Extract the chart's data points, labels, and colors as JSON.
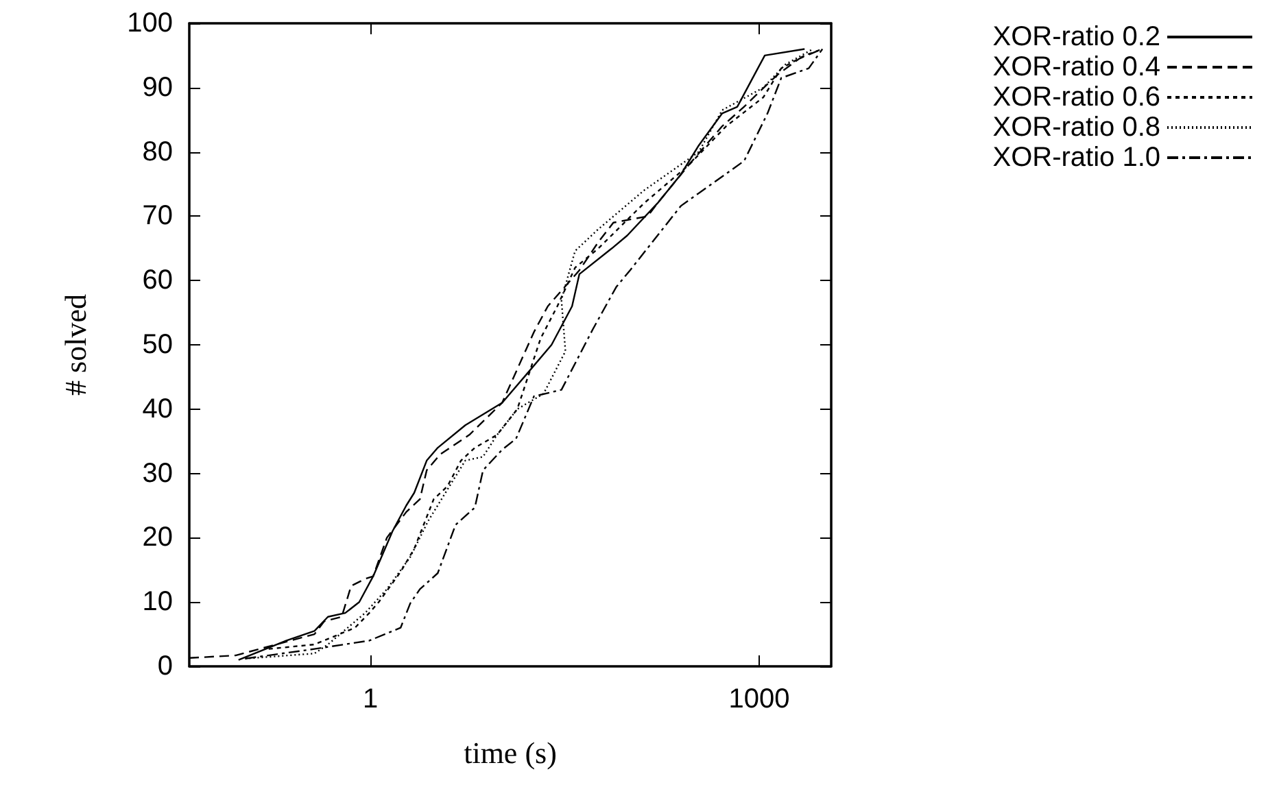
{
  "chart_data": {
    "type": "line",
    "xlabel": "time (s)",
    "ylabel": "# solved",
    "log": "x",
    "legend": "top right",
    "grid": false,
    "xlim": [
      0.04,
      3600
    ],
    "xticks": [
      1,
      1000
    ],
    "ylim": [
      0,
      100
    ],
    "yticks": [
      0,
      10,
      20,
      30,
      40,
      50,
      60,
      70,
      80,
      90,
      100
    ],
    "series": [
      {
        "name": "XOR-ratio 0.2",
        "color": "#000000",
        "line_style": "solid",
        "x": [
          0.096,
          0.225,
          0.37,
          0.47,
          0.64,
          0.82,
          1.05,
          1.48,
          1.89,
          2.18,
          2.72,
          3.31,
          5.4,
          10.4,
          15.4,
          25,
          36,
          41,
          73,
          96,
          164,
          249,
          342,
          519,
          678,
          978,
          1106,
          2244
        ],
        "values": [
          1,
          4,
          5.5,
          7.7,
          8.3,
          10,
          14,
          21,
          25,
          27,
          32,
          34,
          37.5,
          41,
          45,
          50,
          56,
          61,
          65,
          67,
          72,
          76.5,
          81,
          86,
          87,
          93,
          95,
          96
        ]
      },
      {
        "name": "XOR-ratio 0.4",
        "color": "#000000",
        "line_style": "dashed",
        "x": [
          0.04,
          0.091,
          0.37,
          0.44,
          0.6,
          0.71,
          0.91,
          1.05,
          1.34,
          1.89,
          2.41,
          2.72,
          3.47,
          5.8,
          10.4,
          18.3,
          23.4,
          41,
          57.5,
          75,
          138,
          164,
          287,
          519,
          764,
          1086,
          1386,
          2040,
          3060
        ],
        "values": [
          1.3,
          1.7,
          5,
          7,
          7.7,
          12.5,
          13.6,
          14,
          20,
          24,
          26,
          30.5,
          33,
          36,
          41,
          52,
          56,
          61.6,
          66,
          69,
          70,
          72,
          78,
          84,
          87,
          90,
          92,
          94.5,
          96
        ]
      },
      {
        "name": "XOR-ratio 0.6",
        "color": "#000000",
        "line_style": "dashed",
        "x": [
          0.164,
          0.37,
          0.76,
          0.98,
          1.16,
          1.71,
          2.18,
          3.08,
          3.93,
          5.0,
          6.4,
          9.5,
          13.6,
          20.6,
          27.7,
          38,
          57.5,
          129,
          288,
          557,
          1078,
          1482,
          2244,
          3080
        ],
        "values": [
          2.7,
          3.4,
          6,
          8.3,
          10,
          14.7,
          18.3,
          26,
          28,
          32,
          34,
          36,
          40,
          51,
          56,
          62,
          65,
          72,
          78,
          84,
          88.5,
          93,
          95,
          96
        ]
      },
      {
        "name": "XOR-ratio 0.8",
        "color": "#000000",
        "line_style": "dotted",
        "x": [
          0.108,
          0.37,
          0.47,
          0.91,
          1.34,
          2.03,
          2.79,
          3.93,
          5.4,
          7.4,
          9.5,
          13.6,
          21.7,
          32,
          29.8,
          38,
          57.5,
          129,
          342,
          519,
          1078,
          1595,
          2600
        ],
        "values": [
          1.2,
          2,
          3.4,
          8.3,
          12,
          17,
          22.6,
          27.5,
          32,
          32.6,
          36,
          40,
          42.4,
          49,
          57,
          64.6,
          68,
          74,
          80,
          86.5,
          90,
          93.6,
          96
        ]
      },
      {
        "name": "XOR-ratio 1.0",
        "color": "#000000",
        "line_style": "dashed",
        "x": [
          0.108,
          0.37,
          0.98,
          1.71,
          2.03,
          2.41,
          3.31,
          4.54,
          6.4,
          7.4,
          10.4,
          13.3,
          18.3,
          29.8,
          52,
          79,
          101,
          249,
          766,
          1161,
          1482,
          2415,
          3080
        ],
        "values": [
          1.2,
          2.7,
          4,
          6,
          9.8,
          12,
          14.5,
          22,
          24.7,
          30.5,
          33.7,
          35.4,
          42,
          43,
          52.4,
          59,
          61.6,
          71.6,
          78.6,
          86,
          91.5,
          93,
          96
        ]
      }
    ]
  }
}
